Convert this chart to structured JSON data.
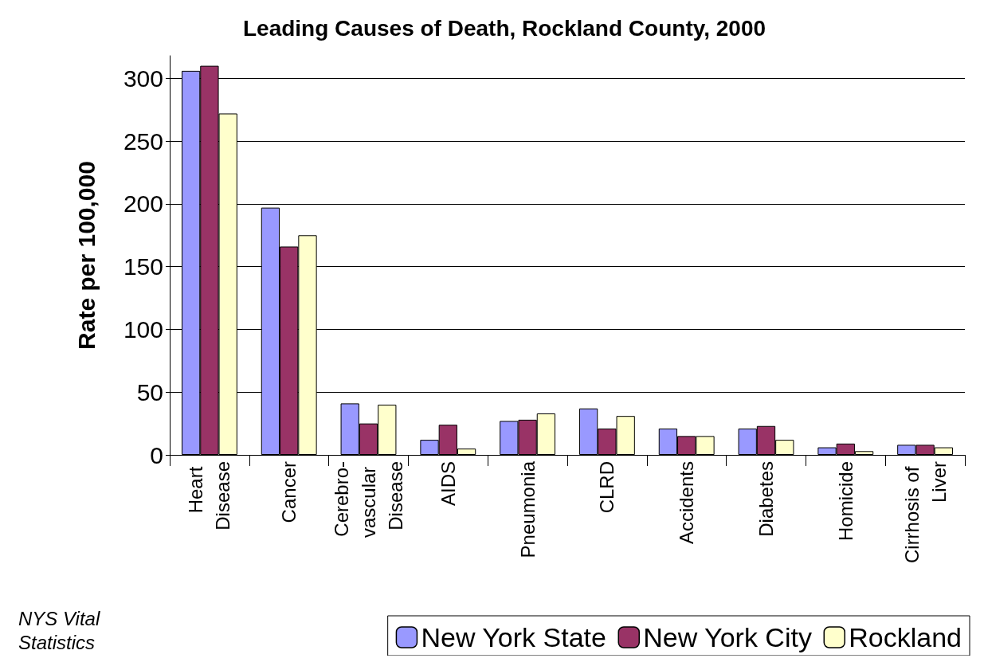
{
  "chart_data": {
    "type": "bar",
    "title": "Leading Causes of Death, Rockland County, 2000",
    "ylabel": "Rate per 100,000",
    "categories": [
      "Heart Disease",
      "Cancer",
      "Cerebro-vascular Disease",
      "AIDS",
      "Pneumonia",
      "CLRD",
      "Accidents",
      "Diabetes",
      "Homicide",
      "Cirrhosis of Liver"
    ],
    "series": [
      {
        "name": "New York State",
        "color": "#9999ff",
        "values": [
          306,
          197,
          41,
          12,
          27,
          37,
          21,
          21,
          6,
          8
        ]
      },
      {
        "name": "New York City",
        "color": "#993366",
        "values": [
          310,
          166,
          25,
          24,
          28,
          21,
          15,
          23,
          9,
          8
        ]
      },
      {
        "name": "Rockland",
        "color": "#ffffcc",
        "values": [
          272,
          175,
          40,
          5,
          33,
          31,
          15,
          12,
          3,
          6
        ]
      }
    ],
    "ylim": [
      0,
      318
    ],
    "yticks": [
      0,
      50,
      100,
      150,
      200,
      250,
      300
    ],
    "grid": "y",
    "legend": "bottom right",
    "annotations": [
      "NYS Vital Statistics"
    ]
  }
}
